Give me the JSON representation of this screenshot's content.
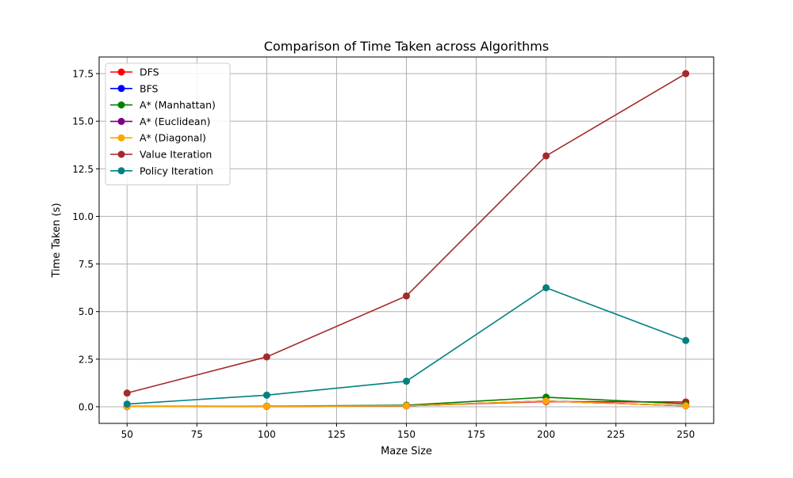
{
  "chart_data": {
    "type": "line",
    "title": "Comparison of Time Taken across Algorithms",
    "xlabel": "Maze Size",
    "ylabel": "Time Taken (s)",
    "x": [
      50,
      100,
      150,
      200,
      250
    ],
    "xlim": [
      40,
      260
    ],
    "ylim": [
      -0.875,
      18.375
    ],
    "xticks": [
      50,
      75,
      100,
      125,
      150,
      175,
      200,
      225,
      250
    ],
    "yticks": [
      0.0,
      2.5,
      5.0,
      7.5,
      10.0,
      12.5,
      15.0,
      17.5
    ],
    "grid": true,
    "legend_position": "top-left",
    "marker": "circle",
    "series": [
      {
        "name": "DFS",
        "color": "#ff0000",
        "values": [
          0.01,
          0.02,
          0.05,
          0.27,
          0.25
        ]
      },
      {
        "name": "BFS",
        "color": "#0000ff",
        "values": [
          0.01,
          0.02,
          0.05,
          0.3,
          0.05
        ]
      },
      {
        "name": "A* (Manhattan)",
        "color": "#008000",
        "values": [
          0.01,
          0.03,
          0.08,
          0.5,
          0.15
        ]
      },
      {
        "name": "A* (Euclidean)",
        "color": "#800080",
        "values": [
          0.01,
          0.02,
          0.05,
          0.3,
          0.05
        ]
      },
      {
        "name": "A* (Diagonal)",
        "color": "#ffa500",
        "values": [
          0.01,
          0.02,
          0.05,
          0.3,
          0.05
        ]
      },
      {
        "name": "Value Iteration",
        "color": "#a52a2a",
        "values": [
          0.72,
          2.62,
          5.82,
          13.18,
          17.5
        ]
      },
      {
        "name": "Policy Iteration",
        "color": "#008080",
        "values": [
          0.14,
          0.61,
          1.34,
          6.25,
          3.48
        ]
      }
    ]
  }
}
